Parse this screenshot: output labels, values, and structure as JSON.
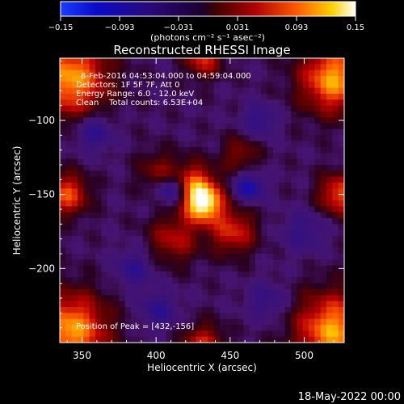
{
  "chart_data": {
    "type": "heatmap",
    "title": "Reconstructed RHESSI Image",
    "xlabel": "Heliocentric X (arcsec)",
    "ylabel": "Heliocentric Y (arcsec)",
    "xlim": [
      335,
      527
    ],
    "ylim": [
      -250,
      -58
    ],
    "xticks": [
      350,
      400,
      450,
      500
    ],
    "yticks": [
      -100,
      -150,
      -200
    ],
    "grid": false,
    "colorbar": {
      "label": "(photons cm⁻² s⁻¹ asec⁻²)",
      "range": [
        -0.15,
        0.15
      ],
      "ticks": [
        "-0.15",
        "-0.093",
        "-0.031",
        "0.031",
        "0.093",
        "0.15"
      ]
    },
    "annotations": {
      "time": "8-Feb-2016 04:53:04.000 to 04:59:04.000",
      "detectors": "Detectors: 1F 5F 7F, Att 0",
      "energy": "Energy Range: 6.0 - 12.0 keV",
      "method": "Clean    Total counts: 6.53E+04",
      "peak": "Position of Peak = [432,-156]"
    },
    "peak": [
      432,
      -156
    ],
    "footer_date": "18-May-2022 00:00"
  }
}
